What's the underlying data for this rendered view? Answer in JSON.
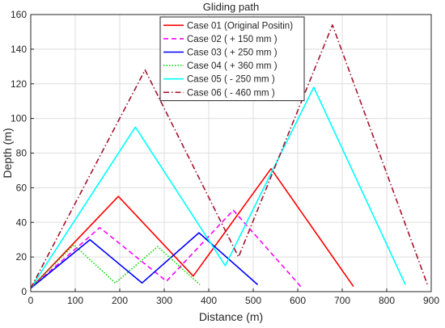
{
  "chart_data": {
    "type": "line",
    "title": "Gliding path",
    "xlabel": "Distance (m)",
    "ylabel": "Depth (m)",
    "xlim": [
      0,
      900
    ],
    "ylim": [
      0,
      160
    ],
    "xticks": [
      0,
      100,
      200,
      300,
      400,
      500,
      600,
      700,
      800,
      900
    ],
    "yticks": [
      0,
      20,
      40,
      60,
      80,
      100,
      120,
      140,
      160
    ],
    "grid": true,
    "legend_position": "top-center",
    "series": [
      {
        "name": "Case 01 (Original Positin)",
        "color": "#ff0000",
        "dash": "solid",
        "x": [
          0,
          197,
          365,
          540,
          725
        ],
        "y": [
          2,
          55,
          9,
          71,
          3
        ]
      },
      {
        "name": "Case 02 ( + 150 mm )",
        "color": "#ff00ff",
        "dash": "dashed",
        "x": [
          0,
          155,
          305,
          455,
          610
        ],
        "y": [
          2,
          37,
          6,
          47,
          2
        ]
      },
      {
        "name": "Case 03 ( + 250 mm )",
        "color": "#0000ff",
        "dash": "solid",
        "x": [
          0,
          133,
          250,
          378,
          510
        ],
        "y": [
          2,
          30,
          5,
          34,
          4
        ]
      },
      {
        "name": "Case 04 ( + 360 mm )",
        "color": "#00dd00",
        "dash": "dotted",
        "x": [
          0,
          97,
          190,
          285,
          380
        ],
        "y": [
          2,
          27,
          5,
          26,
          4
        ]
      },
      {
        "name": "Case 05 ( - 250 mm )",
        "color": "#00ffff",
        "dash": "solid",
        "x": [
          0,
          235,
          437,
          636,
          842
        ],
        "y": [
          2,
          95,
          15,
          118,
          4
        ]
      },
      {
        "name": "Case 06 ( - 460 mm )",
        "color": "#a2142f",
        "dash": "dashdot",
        "x": [
          0,
          257,
          467,
          678,
          893
        ],
        "y": [
          2,
          128,
          20,
          154,
          3
        ]
      }
    ]
  }
}
